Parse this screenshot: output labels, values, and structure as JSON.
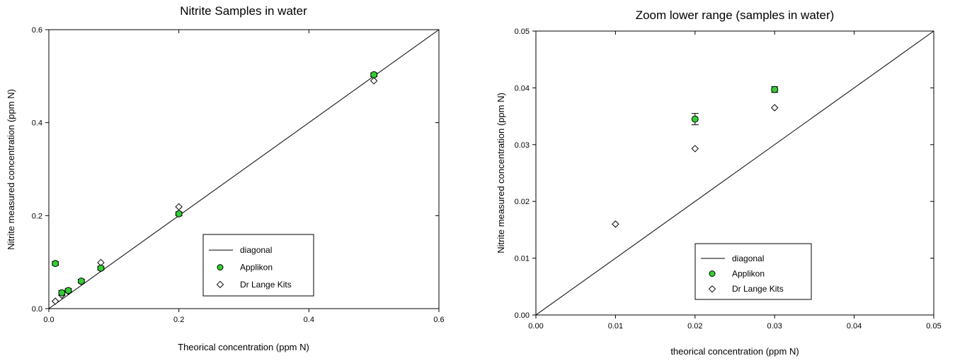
{
  "chart_data": [
    {
      "type": "scatter",
      "title": "Nitrite Samples in water",
      "xlabel": "Theorical concentration (ppm N)",
      "ylabel": "Nitrite measured concentration  (ppm N)",
      "xlim": [
        0,
        0.6
      ],
      "ylim": [
        0,
        0.6
      ],
      "xticks": [
        "0.0",
        "0.2",
        "0.4",
        "0.6"
      ],
      "yticks": [
        "0.0",
        "0.2",
        "0.4",
        "0.6"
      ],
      "grid": false,
      "legend_position": "lower-right",
      "legend": [
        {
          "label": "diagonal",
          "kind": "line"
        },
        {
          "label": "Applikon",
          "kind": "circle"
        },
        {
          "label": "Dr Lange Kits",
          "kind": "diamond"
        }
      ],
      "series": [
        {
          "name": "diagonal",
          "kind": "line",
          "x": [
            0,
            0.6
          ],
          "y": [
            0,
            0.6
          ]
        },
        {
          "name": "Applikon",
          "kind": "circle",
          "color": "#33cc33",
          "x": [
            0.01,
            0.02,
            0.03,
            0.05,
            0.08,
            0.2,
            0.5
          ],
          "y": [
            0.097,
            0.034,
            0.039,
            0.059,
            0.087,
            0.204,
            0.503
          ],
          "err": [
            0.004,
            0.005,
            0.004,
            0.004,
            0.004,
            0.004,
            0.004
          ]
        },
        {
          "name": "Dr Lange Kits",
          "kind": "diamond",
          "x": [
            0.01,
            0.02,
            0.03,
            0.05,
            0.08,
            0.2,
            0.5
          ],
          "y": [
            0.016,
            0.029,
            0.037,
            0.059,
            0.099,
            0.219,
            0.49
          ]
        }
      ]
    },
    {
      "type": "scatter",
      "title": "Zoom lower range (samples in water)",
      "xlabel": "theorical concentration (ppm N)",
      "ylabel": "Nitrite measured concentration  (ppm N)",
      "xlim": [
        0,
        0.05
      ],
      "ylim": [
        0,
        0.05
      ],
      "xticks": [
        "0.00",
        "0.01",
        "0.02",
        "0.03",
        "0.04",
        "0.05"
      ],
      "yticks": [
        "0.00",
        "0.01",
        "0.02",
        "0.03",
        "0.04",
        "0.05"
      ],
      "grid": false,
      "legend_position": "lower-right",
      "legend": [
        {
          "label": "diagonal",
          "kind": "line"
        },
        {
          "label": "Applikon",
          "kind": "circle"
        },
        {
          "label": "Dr Lange Kits",
          "kind": "diamond"
        }
      ],
      "series": [
        {
          "name": "diagonal",
          "kind": "line",
          "x": [
            0,
            0.05
          ],
          "y": [
            0,
            0.05
          ]
        },
        {
          "name": "Applikon",
          "kind": "circle",
          "color": "#33cc33",
          "x": [
            0.02,
            0.03
          ],
          "y": [
            0.0345,
            0.0397
          ],
          "err": [
            0.001,
            0.0005
          ]
        },
        {
          "name": "Dr Lange Kits",
          "kind": "diamond",
          "x": [
            0.01,
            0.02,
            0.03
          ],
          "y": [
            0.016,
            0.0293,
            0.0365
          ]
        }
      ]
    }
  ]
}
